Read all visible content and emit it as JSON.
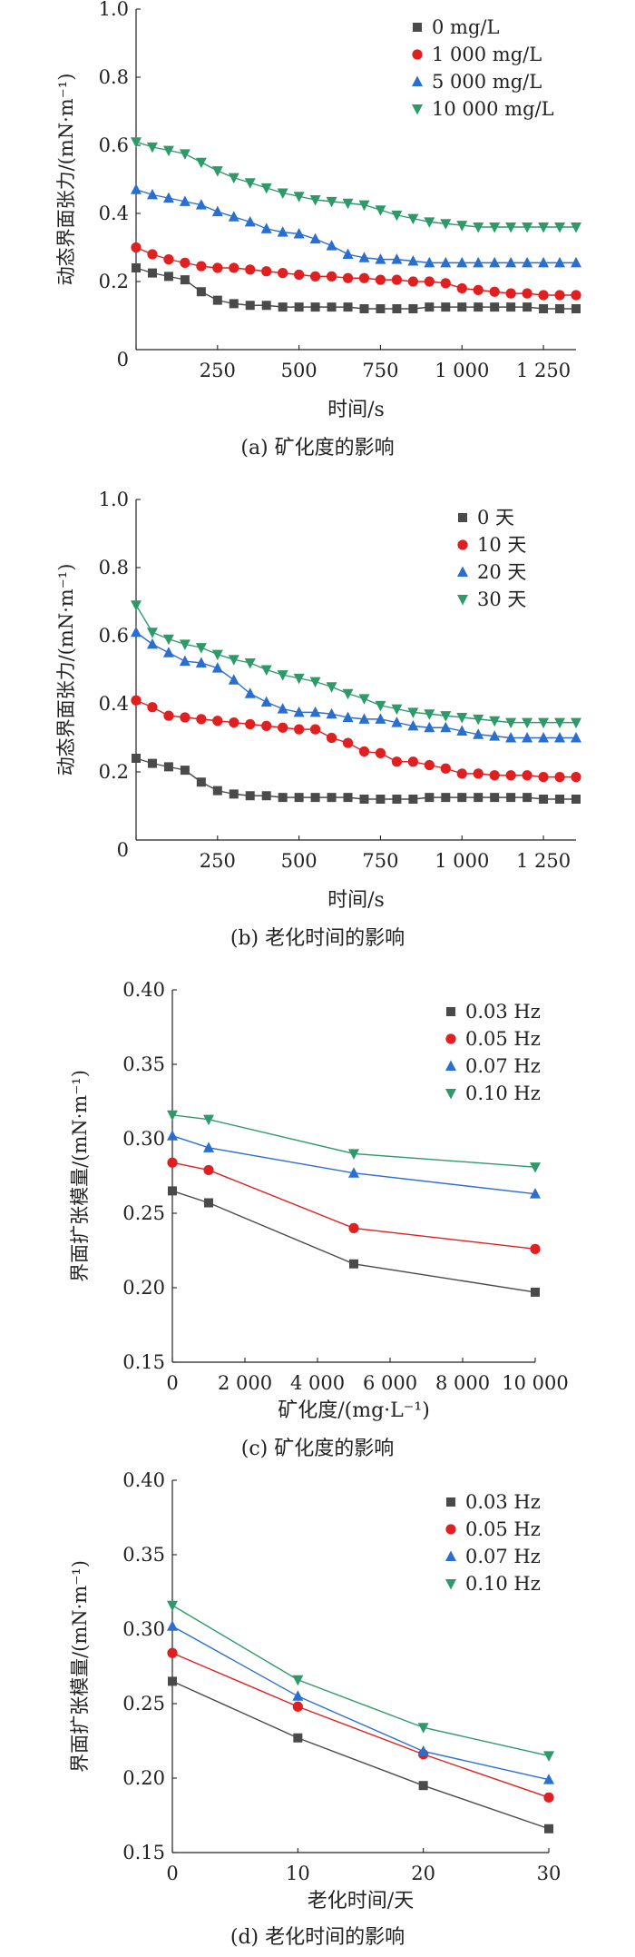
{
  "chart_data": [
    {
      "type": "line",
      "caption": "(a) 矿化度的影响",
      "xlabel": "时间/s",
      "ylabel": "动态界面张力/(mN·m⁻¹)",
      "xlim": [
        0,
        1350
      ],
      "ylim": [
        0,
        1.0
      ],
      "xticks": [
        0,
        250,
        500,
        750,
        1000,
        1250
      ],
      "xtick_labels": [
        "0",
        "250",
        "500",
        "750",
        "1 000",
        "1 250"
      ],
      "yticks": [
        0.2,
        0.4,
        0.6,
        0.8,
        1.0
      ],
      "ytick_labels": [
        "0.2",
        "0.4",
        "0.6",
        "0.8",
        "1.0"
      ],
      "legend_position": "top-right",
      "x": [
        0,
        50,
        100,
        150,
        200,
        250,
        300,
        350,
        400,
        450,
        500,
        550,
        600,
        650,
        700,
        750,
        800,
        850,
        900,
        950,
        1000,
        1050,
        1100,
        1150,
        1200,
        1250,
        1300,
        1350
      ],
      "series": [
        {
          "name": "0 mg/L",
          "marker": "square",
          "color": "#4a4a4a",
          "values": [
            0.24,
            0.225,
            0.215,
            0.205,
            0.17,
            0.145,
            0.135,
            0.13,
            0.13,
            0.125,
            0.125,
            0.125,
            0.125,
            0.125,
            0.12,
            0.12,
            0.12,
            0.12,
            0.125,
            0.125,
            0.125,
            0.125,
            0.125,
            0.125,
            0.125,
            0.12,
            0.12,
            0.12
          ]
        },
        {
          "name": "1 000 mg/L",
          "marker": "circle",
          "color": "#e02020",
          "values": [
            0.3,
            0.28,
            0.265,
            0.255,
            0.245,
            0.24,
            0.24,
            0.235,
            0.23,
            0.225,
            0.22,
            0.215,
            0.215,
            0.21,
            0.21,
            0.205,
            0.205,
            0.2,
            0.2,
            0.195,
            0.18,
            0.175,
            0.17,
            0.165,
            0.165,
            0.16,
            0.16,
            0.16
          ]
        },
        {
          "name": "5 000 mg/L",
          "marker": "triangle-up",
          "color": "#2a6fd0",
          "values": [
            0.47,
            0.455,
            0.445,
            0.435,
            0.425,
            0.405,
            0.39,
            0.375,
            0.355,
            0.345,
            0.34,
            0.325,
            0.305,
            0.28,
            0.27,
            0.265,
            0.265,
            0.26,
            0.255,
            0.255,
            0.255,
            0.255,
            0.255,
            0.255,
            0.255,
            0.255,
            0.255,
            0.255
          ]
        },
        {
          "name": "10 000 mg/L",
          "marker": "triangle-down",
          "color": "#2e9a6a",
          "values": [
            0.61,
            0.595,
            0.585,
            0.575,
            0.55,
            0.525,
            0.505,
            0.49,
            0.475,
            0.46,
            0.45,
            0.44,
            0.435,
            0.43,
            0.425,
            0.41,
            0.395,
            0.385,
            0.375,
            0.37,
            0.365,
            0.36,
            0.36,
            0.36,
            0.36,
            0.36,
            0.36,
            0.36
          ]
        }
      ]
    },
    {
      "type": "line",
      "caption": "(b) 老化时间的影响",
      "xlabel": "时间/s",
      "ylabel": "动态界面张力/(mN·m⁻¹)",
      "xlim": [
        0,
        1350
      ],
      "ylim": [
        0,
        1.0
      ],
      "xticks": [
        0,
        250,
        500,
        750,
        1000,
        1250
      ],
      "xtick_labels": [
        "0",
        "250",
        "500",
        "750",
        "1 000",
        "1 250"
      ],
      "yticks": [
        0.2,
        0.4,
        0.6,
        0.8,
        1.0
      ],
      "ytick_labels": [
        "0.2",
        "0.4",
        "0.6",
        "0.8",
        "1.0"
      ],
      "legend_position": "top-right",
      "x": [
        0,
        50,
        100,
        150,
        200,
        250,
        300,
        350,
        400,
        450,
        500,
        550,
        600,
        650,
        700,
        750,
        800,
        850,
        900,
        950,
        1000,
        1050,
        1100,
        1150,
        1200,
        1250,
        1300,
        1350
      ],
      "series": [
        {
          "name": "0 天",
          "marker": "square",
          "color": "#4a4a4a",
          "values": [
            0.24,
            0.225,
            0.215,
            0.205,
            0.17,
            0.145,
            0.135,
            0.13,
            0.13,
            0.125,
            0.125,
            0.125,
            0.125,
            0.125,
            0.12,
            0.12,
            0.12,
            0.12,
            0.125,
            0.125,
            0.125,
            0.125,
            0.125,
            0.125,
            0.125,
            0.12,
            0.12,
            0.12
          ]
        },
        {
          "name": "10 天",
          "marker": "circle",
          "color": "#e02020",
          "values": [
            0.41,
            0.39,
            0.365,
            0.36,
            0.355,
            0.35,
            0.345,
            0.34,
            0.335,
            0.33,
            0.325,
            0.325,
            0.3,
            0.285,
            0.26,
            0.255,
            0.23,
            0.23,
            0.22,
            0.21,
            0.195,
            0.195,
            0.19,
            0.19,
            0.19,
            0.185,
            0.185,
            0.185
          ]
        },
        {
          "name": "20 天",
          "marker": "triangle-up",
          "color": "#2a6fd0",
          "values": [
            0.61,
            0.575,
            0.55,
            0.525,
            0.52,
            0.505,
            0.47,
            0.43,
            0.405,
            0.385,
            0.375,
            0.375,
            0.37,
            0.36,
            0.355,
            0.355,
            0.345,
            0.335,
            0.33,
            0.33,
            0.32,
            0.31,
            0.305,
            0.3,
            0.3,
            0.3,
            0.3,
            0.3
          ]
        },
        {
          "name": "30 天",
          "marker": "triangle-down",
          "color": "#2e9a6a",
          "values": [
            0.69,
            0.61,
            0.59,
            0.575,
            0.565,
            0.545,
            0.53,
            0.52,
            0.5,
            0.485,
            0.475,
            0.465,
            0.45,
            0.43,
            0.415,
            0.395,
            0.385,
            0.375,
            0.37,
            0.365,
            0.36,
            0.355,
            0.35,
            0.345,
            0.345,
            0.345,
            0.345,
            0.345
          ]
        }
      ]
    },
    {
      "type": "line",
      "caption": "(c) 矿化度的影响",
      "xlabel": "矿化度/(mg·L⁻¹)",
      "ylabel": "界面扩张模量/(mN·m⁻¹)",
      "xlim": [
        0,
        10000
      ],
      "ylim": [
        0.15,
        0.4
      ],
      "xticks": [
        0,
        2000,
        4000,
        6000,
        8000,
        10000
      ],
      "xtick_labels": [
        "0",
        "2 000",
        "4 000",
        "6 000",
        "8 000",
        "10 000"
      ],
      "yticks": [
        0.15,
        0.2,
        0.25,
        0.3,
        0.35,
        0.4
      ],
      "ytick_labels": [
        "0.15",
        "0.20",
        "0.25",
        "0.30",
        "0.35",
        "0.40"
      ],
      "legend_position": "top-right",
      "x": [
        0,
        1000,
        5000,
        10000
      ],
      "series": [
        {
          "name": "0.03 Hz",
          "marker": "square",
          "color": "#4a4a4a",
          "values": [
            0.265,
            0.257,
            0.216,
            0.197
          ]
        },
        {
          "name": "0.05 Hz",
          "marker": "circle",
          "color": "#e02020",
          "values": [
            0.284,
            0.279,
            0.24,
            0.226
          ]
        },
        {
          "name": "0.07 Hz",
          "marker": "triangle-up",
          "color": "#2a6fd0",
          "values": [
            0.302,
            0.294,
            0.277,
            0.263
          ]
        },
        {
          "name": "0.10 Hz",
          "marker": "triangle-down",
          "color": "#2e9a6a",
          "values": [
            0.316,
            0.313,
            0.29,
            0.281
          ]
        }
      ]
    },
    {
      "type": "line",
      "caption": "(d) 老化时间的影响",
      "xlabel": "老化时间/天",
      "ylabel": "界面扩张模量/(mN·m⁻¹)",
      "xlim": [
        0,
        30
      ],
      "ylim": [
        0.15,
        0.4
      ],
      "xticks": [
        0,
        10,
        20,
        30
      ],
      "xtick_labels": [
        "0",
        "10",
        "20",
        "30"
      ],
      "yticks": [
        0.15,
        0.2,
        0.25,
        0.3,
        0.35,
        0.4
      ],
      "ytick_labels": [
        "0.15",
        "0.20",
        "0.25",
        "0.30",
        "0.35",
        "0.40"
      ],
      "legend_position": "top-right",
      "x": [
        0,
        10,
        20,
        30
      ],
      "series": [
        {
          "name": "0.03 Hz",
          "marker": "square",
          "color": "#4a4a4a",
          "values": [
            0.265,
            0.227,
            0.195,
            0.166
          ]
        },
        {
          "name": "0.05 Hz",
          "marker": "circle",
          "color": "#e02020",
          "values": [
            0.284,
            0.248,
            0.216,
            0.187
          ]
        },
        {
          "name": "0.07 Hz",
          "marker": "triangle-up",
          "color": "#2a6fd0",
          "values": [
            0.302,
            0.255,
            0.218,
            0.199
          ]
        },
        {
          "name": "0.10 Hz",
          "marker": "triangle-down",
          "color": "#2e9a6a",
          "values": [
            0.316,
            0.266,
            0.234,
            0.215
          ]
        }
      ]
    }
  ]
}
